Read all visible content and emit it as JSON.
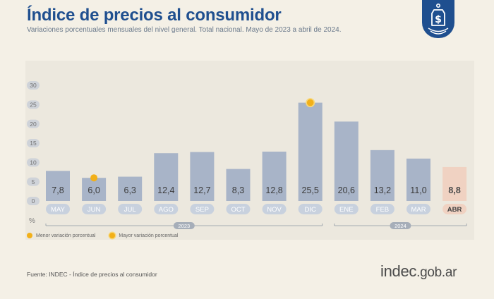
{
  "header": {
    "title": "Índice de precios al consumidor",
    "subtitle": "Variaciones porcentuales mensuales del nivel general. Total nacional. Mayo de 2023 a abril de 2024."
  },
  "chart_data": {
    "type": "bar",
    "title": "Índice de precios al consumidor",
    "subtitle": "Variaciones porcentuales mensuales del nivel general. Total nacional. Mayo de 2023 a abril de 2024.",
    "ylabel": "%",
    "ylim": [
      0,
      30
    ],
    "yticks": [
      0,
      5,
      10,
      15,
      20,
      25,
      30
    ],
    "grid": false,
    "categories": [
      "MAY",
      "JUN",
      "JUL",
      "AGO",
      "SEP",
      "OCT",
      "NOV",
      "DIC",
      "ENE",
      "FEB",
      "MAR",
      "ABR"
    ],
    "values": [
      7.8,
      6.0,
      6.3,
      12.4,
      12.7,
      8.3,
      12.8,
      25.5,
      20.6,
      13.2,
      11.0,
      8.8
    ],
    "value_labels": [
      "7,8",
      "6,0",
      "6,3",
      "12,4",
      "12,7",
      "8,3",
      "12,8",
      "25,5",
      "20,6",
      "13,2",
      "11,0",
      "8,8"
    ],
    "year_groups": [
      {
        "label": "2023",
        "from": "MAY",
        "to": "DIC"
      },
      {
        "label": "2024",
        "from": "ENE",
        "to": "ABR"
      }
    ],
    "highlight_last": "ABR",
    "markers": {
      "min": "JUN",
      "max": "DIC"
    },
    "legend": {
      "placement": "bottom-left",
      "min_label": "Menor variación porcentual",
      "max_label": "Mayor variación porcentual"
    },
    "colors": {
      "bar": "#a8b4c8",
      "bar_highlight": "#f0d2c2",
      "label_box": "#c8d1de",
      "label_box_highlight": "#f0d2c2",
      "marker": "#f2b019",
      "axis_text": "#707070"
    }
  },
  "footer": {
    "source": "Fuente: INDEC - Índice de precios al consumidor",
    "brand_name": "indec",
    "brand_suffix": ".gob.ar"
  },
  "icons": {
    "badge": "price-tag-dollar-icon"
  }
}
